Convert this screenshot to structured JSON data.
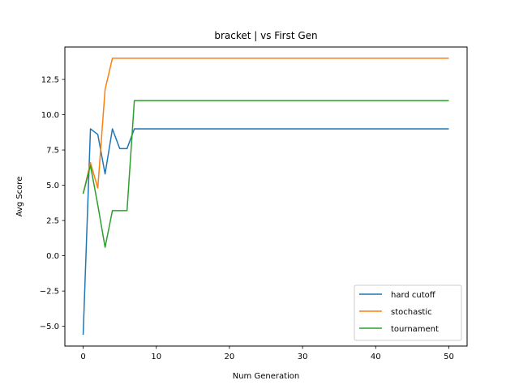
{
  "chart_data": {
    "type": "line",
    "title": "bracket | vs First Gen",
    "xlabel": "Num Generation",
    "ylabel": "Avg Score",
    "xlim": [
      -2.5,
      52.5
    ],
    "ylim": [
      -6.4,
      14.8
    ],
    "xticks": [
      0,
      10,
      20,
      30,
      40,
      50
    ],
    "xtick_labels": [
      "0",
      "10",
      "20",
      "30",
      "40",
      "50"
    ],
    "yticks": [
      -5.0,
      -2.5,
      0.0,
      2.5,
      5.0,
      7.5,
      10.0,
      12.5
    ],
    "ytick_labels": [
      "−5.0",
      "−2.5",
      "0.0",
      "2.5",
      "5.0",
      "7.5",
      "10.0",
      "12.5"
    ],
    "grid": false,
    "legend_position": "lower-right",
    "series": [
      {
        "name": "hard cutoff",
        "color": "#1f77b4",
        "x": [
          0,
          1,
          2,
          3,
          4,
          5,
          6,
          7,
          50
        ],
        "values": [
          -5.6,
          9.0,
          8.6,
          5.8,
          9.0,
          7.6,
          7.6,
          9.0,
          9.0
        ]
      },
      {
        "name": "stochastic",
        "color": "#ff7f0e",
        "x": [
          0,
          1,
          2,
          3,
          4,
          50
        ],
        "values": [
          4.4,
          6.6,
          4.8,
          11.8,
          14.0,
          14.0
        ]
      },
      {
        "name": "tournament",
        "color": "#2ca02c",
        "x": [
          0,
          1,
          2,
          3,
          4,
          5,
          6,
          7,
          50
        ],
        "values": [
          4.4,
          6.4,
          3.6,
          0.6,
          3.2,
          3.2,
          3.2,
          11.0,
          11.0
        ]
      }
    ]
  }
}
